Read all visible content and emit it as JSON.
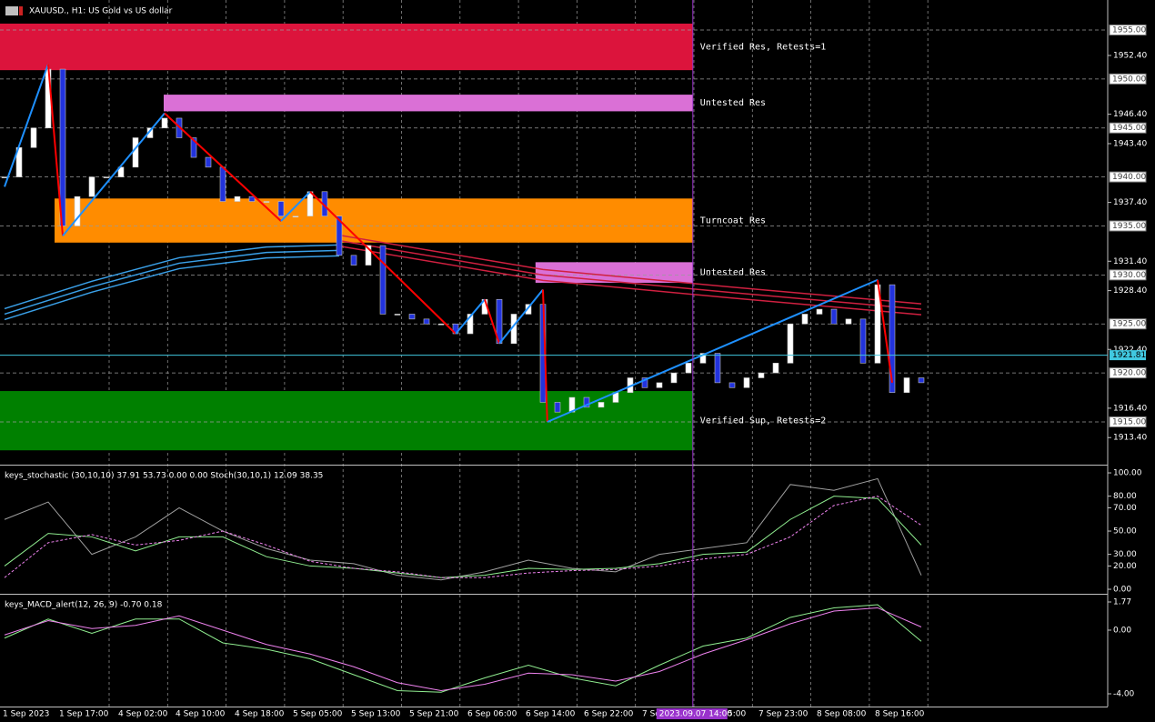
{
  "header": {
    "symbol": "XAUUSD., H1:  US Gold vs US dollar"
  },
  "time_labels": [
    "1 Sep 2023",
    "1 Sep 17:00",
    "4 Sep 02:00",
    "4 Sep 10:00",
    "4 Sep 18:00",
    "5 Sep 05:00",
    "5 Sep 13:00",
    "5 Sep 21:00",
    "6 Sep 06:00",
    "6 Sep 14:00",
    "6 Sep 22:00",
    "7 Se",
    "5:00",
    "7 Sep 23:00",
    "8 Sep 08:00",
    "8 Sep 16:00"
  ],
  "crosshair": {
    "label": "2023.09.07 14:00",
    "x": 47.3
  },
  "chart_data": [
    {
      "type": "candlestick",
      "x": [
        0,
        1,
        2,
        3,
        4,
        5,
        6,
        7,
        8,
        9,
        10,
        11,
        12,
        13,
        14,
        15,
        16,
        17,
        18,
        19,
        20,
        21,
        22,
        23,
        24,
        25,
        26,
        27,
        28,
        29,
        30,
        31,
        32,
        33,
        34,
        35,
        36,
        37,
        38,
        39,
        40,
        41,
        42,
        43,
        44,
        45,
        46,
        47,
        48,
        49,
        50,
        51,
        52,
        53,
        54,
        55,
        56,
        57,
        58,
        59,
        60,
        61,
        62,
        63
      ],
      "values": [
        1940,
        1943,
        1945,
        1951,
        1935,
        1938,
        1940,
        1940,
        1941,
        1944,
        1945,
        1946,
        1944,
        1942,
        1941,
        1937.5,
        1938,
        1937.5,
        1937.5,
        1936,
        1936,
        1938.5,
        1936,
        1932,
        1931,
        1933,
        1926,
        1926,
        1925.5,
        1925,
        1925,
        1924,
        1926,
        1927.5,
        1923,
        1926,
        1927,
        1917,
        1916,
        1917.5,
        1916.5,
        1917,
        1918,
        1919.5,
        1918.5,
        1919,
        1920,
        1921,
        1922,
        1919,
        1918.5,
        1919.5,
        1920,
        1921,
        1925,
        1926,
        1926.5,
        1925,
        1925.5,
        1921,
        1929,
        1918,
        1919.5,
        1919
      ],
      "colors": {
        "up": "#ffffff",
        "down": "#2233dd"
      },
      "ylim": [
        1910.73,
        1958.06
      ],
      "yticks": [
        {
          "value": 1952.4,
          "label": "1952.40"
        },
        {
          "value": 1946.4,
          "label": "1946.40"
        },
        {
          "value": 1943.4,
          "label": "1943.40"
        },
        {
          "value": 1937.4,
          "label": "1937.40"
        },
        {
          "value": 1931.4,
          "label": "1931.40"
        },
        {
          "value": 1928.4,
          "label": "1928.40"
        },
        {
          "value": 1922.4,
          "label": "1922.40"
        },
        {
          "value": 1916.4,
          "label": "1916.40"
        },
        {
          "value": 1913.4,
          "label": "1913.40"
        }
      ],
      "levels": [
        {
          "value": 1955,
          "label": "1955.00"
        },
        {
          "value": 1950,
          "label": "1950.00"
        },
        {
          "value": 1945,
          "label": "1945.00"
        },
        {
          "value": 1940,
          "label": "1940.00"
        },
        {
          "value": 1935,
          "label": "1935.00"
        },
        {
          "value": 1930,
          "label": "1930.00"
        },
        {
          "value": 1925,
          "label": "1925.00"
        },
        {
          "value": 1920,
          "label": "1920.00"
        },
        {
          "value": 1915,
          "label": "1915.00"
        }
      ],
      "current": {
        "value": 1921.81,
        "label": "1921.81",
        "color": "#40c8e0"
      },
      "zones": [
        {
          "label": "Verified Res, Retests=1",
          "low": 1950.9,
          "high": 1955.65,
          "start": 0,
          "end": 47.3,
          "color": "#dc143c"
        },
        {
          "label": "Untested Res",
          "low": 1946.7,
          "high": 1948.4,
          "start": 11.25,
          "end": 47.3,
          "color": "#da70d6"
        },
        {
          "label": "Turncoat Res",
          "low": 1933.3,
          "high": 1937.8,
          "start": 3.75,
          "end": 47.3,
          "color": "#ff8c00"
        },
        {
          "label": "Untested Res",
          "low": 1929.2,
          "high": 1931.3,
          "start": 36.8,
          "end": 47.3,
          "color": "#da70d6"
        },
        {
          "label": "Verified Sup, Retests=2",
          "low": 1912.1,
          "high": 1918.15,
          "start": 0,
          "end": 47.3,
          "color": "#008000"
        }
      ],
      "lines": [
        {
          "color": "#3aa0e8",
          "x": [
            0,
            6,
            12,
            18,
            23
          ],
          "values": [
            1926,
            1928.8,
            1931.2,
            1932.3,
            1932.5
          ]
        },
        {
          "color": "#d02040",
          "x": [
            23,
            37,
            50,
            63
          ],
          "values": [
            1933.5,
            1930,
            1928.2,
            1926.5
          ]
        }
      ],
      "zigzag": {
        "up_color": "#1e90ff",
        "down_color": "#ff0000",
        "x": [
          0,
          3,
          4,
          11,
          19,
          21,
          31,
          33,
          34,
          37,
          37.3,
          60,
          61
        ],
        "values": [
          1939,
          1951.5,
          1934,
          1946.5,
          1935.5,
          1938.5,
          1924,
          1927.5,
          1923,
          1928.5,
          1915,
          1929.5,
          1919
        ]
      }
    },
    {
      "type": "line",
      "title": "keys_stochastic (30,10,10) 37.91 53.73 0.00 0.00 Stoch(30,10,1) 12.09 38.35",
      "x": [
        0,
        3,
        6,
        9,
        12,
        15,
        18,
        21,
        24,
        27,
        30,
        33,
        36,
        39,
        42,
        45,
        48,
        51,
        54,
        57,
        60,
        63
      ],
      "series": [
        {
          "color": "#a0a0a0",
          "values": [
            60,
            75,
            30,
            45,
            70,
            50,
            35,
            25,
            22,
            12,
            8,
            15,
            25,
            18,
            15,
            30,
            35,
            40,
            90,
            85,
            95,
            12
          ]
        },
        {
          "color": "#90ee90",
          "values": [
            20,
            48,
            45,
            33,
            45,
            45,
            28,
            20,
            18,
            14,
            10,
            12,
            18,
            17,
            18,
            22,
            30,
            32,
            60,
            80,
            78,
            38
          ]
        },
        {
          "color": "#ee82ee",
          "dashed": true,
          "values": [
            10,
            40,
            47,
            38,
            42,
            50,
            38,
            24,
            18,
            15,
            10,
            10,
            14,
            16,
            17,
            20,
            26,
            30,
            45,
            72,
            80,
            55
          ]
        }
      ],
      "ylim": [
        -3.1,
        105.5
      ],
      "yticks": [
        {
          "value": 100,
          "label": "100.00"
        },
        {
          "value": 80,
          "label": "80.00"
        },
        {
          "value": 70,
          "label": "70.00"
        },
        {
          "value": 50,
          "label": "50.00"
        },
        {
          "value": 30,
          "label": "30.00"
        },
        {
          "value": 20,
          "label": "20.00"
        },
        {
          "value": 0,
          "label": "0.00"
        }
      ]
    },
    {
      "type": "line",
      "title": "keys_MACD_alert(12, 26, 9) -0.70 0.18",
      "x": [
        0,
        3,
        6,
        9,
        12,
        15,
        18,
        21,
        24,
        27,
        30,
        33,
        36,
        39,
        42,
        45,
        48,
        51,
        54,
        57,
        60,
        63
      ],
      "series": [
        {
          "color": "#90ee90",
          "values": [
            -0.5,
            0.7,
            -0.2,
            0.7,
            0.7,
            -0.8,
            -1.2,
            -1.8,
            -2.8,
            -3.8,
            -3.9,
            -3.0,
            -2.2,
            -3.0,
            -3.5,
            -2.2,
            -1.0,
            -0.5,
            0.8,
            1.4,
            1.6,
            -0.7
          ]
        },
        {
          "color": "#ee82ee",
          "values": [
            -0.3,
            0.6,
            0.1,
            0.3,
            0.9,
            0.0,
            -0.9,
            -1.5,
            -2.3,
            -3.3,
            -3.8,
            -3.4,
            -2.7,
            -2.8,
            -3.2,
            -2.6,
            -1.5,
            -0.6,
            0.4,
            1.2,
            1.4,
            0.2
          ]
        }
      ],
      "ylim": [
        -4.8,
        2.17
      ],
      "yticks": [
        {
          "value": 1.77,
          "label": "1.77"
        },
        {
          "value": 0,
          "label": "0.00"
        },
        {
          "value": -4,
          "label": "-4.00"
        }
      ]
    }
  ]
}
